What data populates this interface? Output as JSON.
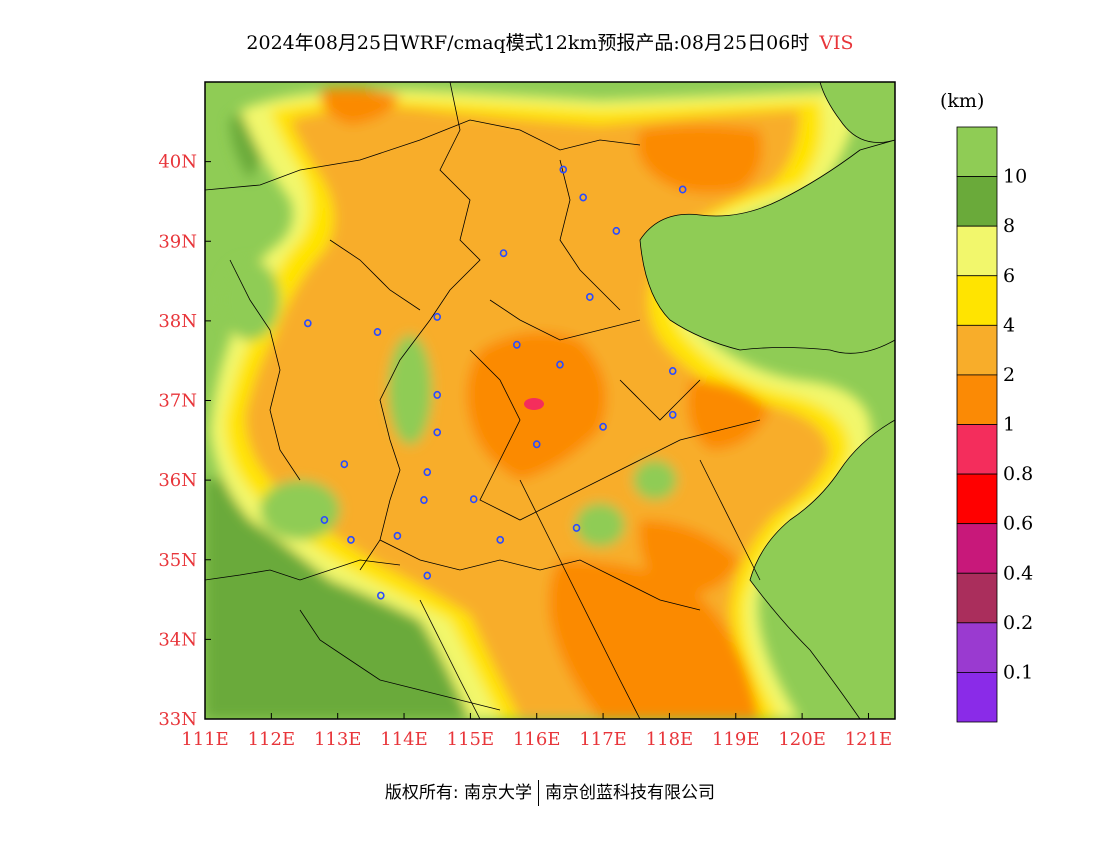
{
  "title": {
    "main": "2024年08月25日WRF/cmaq模式12km预报产品:08月25日06时",
    "variable": "VIS"
  },
  "legend": {
    "unit": "(km)",
    "bins": [
      {
        "label": "",
        "color": "#8fcc55"
      },
      {
        "label": "10",
        "color": "#6aaa3a"
      },
      {
        "label": "8",
        "color": "#f2f76c"
      },
      {
        "label": "6",
        "color": "#ffe400"
      },
      {
        "label": "4",
        "color": "#f8ad2a"
      },
      {
        "label": "2",
        "color": "#fb8a05"
      },
      {
        "label": "1",
        "color": "#f42d5c"
      },
      {
        "label": "0.8",
        "color": "#ff0000"
      },
      {
        "label": "0.6",
        "color": "#c8187a"
      },
      {
        "label": "0.4",
        "color": "#aa2e5c"
      },
      {
        "label": "0.2",
        "color": "#9a3ad0"
      },
      {
        "label": "0.1",
        "color": "#8a2be8"
      }
    ]
  },
  "axes": {
    "lat_labels": [
      "40N",
      "39N",
      "38N",
      "37N",
      "36N",
      "35N",
      "34N",
      "33N"
    ],
    "lon_labels": [
      "111E",
      "112E",
      "113E",
      "114E",
      "115E",
      "116E",
      "117E",
      "118E",
      "119E",
      "120E",
      "121E"
    ],
    "lat_range": [
      33,
      41
    ],
    "lon_range": [
      111,
      121.4
    ]
  },
  "chart_data": {
    "type": "heatmap",
    "title": "2024年08月25日WRF/cmaq模式12km预报产品:08月25日06时 VIS",
    "unit": "(km)",
    "xlim": [
      111,
      121.4
    ],
    "ylim": [
      33,
      41
    ]
  },
  "city_markers": [
    {
      "lon": 116.4,
      "lat": 39.9
    },
    {
      "lon": 116.7,
      "lat": 39.55
    },
    {
      "lon": 117.2,
      "lat": 39.13
    },
    {
      "lon": 118.2,
      "lat": 39.65
    },
    {
      "lon": 115.5,
      "lat": 38.85
    },
    {
      "lon": 116.8,
      "lat": 38.3
    },
    {
      "lon": 114.5,
      "lat": 38.05
    },
    {
      "lon": 112.55,
      "lat": 37.97
    },
    {
      "lon": 113.6,
      "lat": 37.86
    },
    {
      "lon": 115.7,
      "lat": 37.7
    },
    {
      "lon": 116.35,
      "lat": 37.45
    },
    {
      "lon": 118.05,
      "lat": 37.37
    },
    {
      "lon": 114.5,
      "lat": 37.07
    },
    {
      "lon": 118.05,
      "lat": 36.82
    },
    {
      "lon": 117.0,
      "lat": 36.67
    },
    {
      "lon": 114.5,
      "lat": 36.6
    },
    {
      "lon": 116.0,
      "lat": 36.45
    },
    {
      "lon": 113.1,
      "lat": 36.2
    },
    {
      "lon": 114.35,
      "lat": 36.1
    },
    {
      "lon": 114.3,
      "lat": 35.75
    },
    {
      "lon": 115.05,
      "lat": 35.76
    },
    {
      "lon": 112.8,
      "lat": 35.5
    },
    {
      "lon": 116.6,
      "lat": 35.4
    },
    {
      "lon": 113.2,
      "lat": 35.25
    },
    {
      "lon": 113.9,
      "lat": 35.3
    },
    {
      "lon": 115.45,
      "lat": 35.25
    },
    {
      "lon": 114.35,
      "lat": 34.8
    },
    {
      "lon": 113.65,
      "lat": 34.55
    }
  ],
  "footer": {
    "left": "版权所有: 南京大学",
    "right": "南京创蓝科技有限公司"
  }
}
